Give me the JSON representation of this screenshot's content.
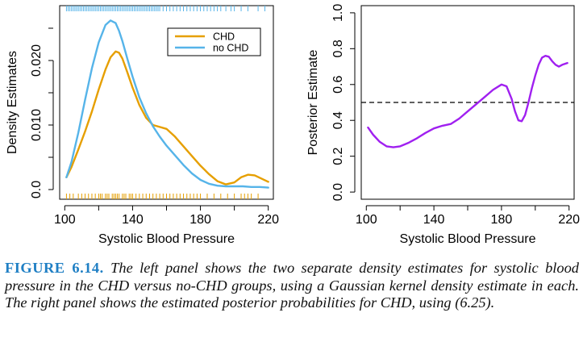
{
  "chart_data": [
    {
      "type": "line",
      "title": "",
      "xlabel": "Systolic Blood Pressure",
      "ylabel": "Density Estimates",
      "xlim": [
        97,
        223
      ],
      "ylim": [
        -0.0015,
        0.0285
      ],
      "xticks": [
        100,
        140,
        180,
        220
      ],
      "yticks": [
        0.0,
        0.01,
        0.02
      ],
      "ytick_labels": [
        "0.0",
        "0.010",
        "0.020"
      ],
      "legend": {
        "placement": "top-right",
        "entries": [
          "CHD",
          "no CHD"
        ]
      },
      "grid": false,
      "series": [
        {
          "name": "CHD",
          "color": "#e69f00",
          "x": [
            101,
            104,
            108,
            112,
            116,
            120,
            124,
            127,
            130,
            132,
            134,
            137,
            140,
            144,
            148,
            152,
            156,
            160,
            165,
            170,
            175,
            180,
            185,
            190,
            195,
            200,
            204,
            208,
            212,
            216,
            220
          ],
          "y": [
            0.0019,
            0.0035,
            0.0062,
            0.009,
            0.0121,
            0.0155,
            0.0186,
            0.0205,
            0.0214,
            0.0212,
            0.0203,
            0.0181,
            0.0158,
            0.0131,
            0.0111,
            0.01,
            0.0097,
            0.0094,
            0.0082,
            0.0067,
            0.0052,
            0.0037,
            0.0024,
            0.0013,
            0.0008,
            0.0011,
            0.0019,
            0.0023,
            0.0022,
            0.0017,
            0.0012
          ]
        },
        {
          "name": "no CHD",
          "color": "#56b4e9",
          "x": [
            101,
            104,
            108,
            112,
            116,
            120,
            124,
            127,
            130,
            132,
            134,
            137,
            140,
            144,
            148,
            152,
            156,
            160,
            165,
            170,
            175,
            180,
            185,
            190,
            195,
            200,
            205,
            210,
            215,
            220
          ],
          "y": [
            0.0019,
            0.0043,
            0.0088,
            0.0139,
            0.0188,
            0.0228,
            0.0255,
            0.0262,
            0.0258,
            0.0246,
            0.023,
            0.0202,
            0.0175,
            0.0143,
            0.0118,
            0.0098,
            0.0082,
            0.0068,
            0.0053,
            0.0038,
            0.0025,
            0.0015,
            0.0009,
            0.0006,
            0.0005,
            0.0005,
            0.0005,
            0.0004,
            0.0004,
            0.0003
          ]
        }
      ],
      "rug_top": {
        "color": "#56b4e9",
        "x": [
          101,
          102,
          103,
          104,
          105,
          106,
          107,
          108,
          109,
          110,
          111,
          112,
          113,
          114,
          115,
          116,
          117,
          118,
          119,
          120,
          121,
          122,
          123,
          124,
          125,
          126,
          127,
          128,
          129,
          130,
          131,
          132,
          133,
          134,
          135,
          136,
          137,
          138,
          139,
          140,
          141,
          142,
          143,
          144,
          145,
          146,
          147,
          148,
          149,
          150,
          151,
          152,
          153,
          154,
          155,
          156,
          158,
          160,
          162,
          164,
          166,
          168,
          170,
          172,
          174,
          176,
          178,
          180,
          182,
          184,
          186,
          188,
          190,
          192,
          195,
          198,
          200,
          204,
          208,
          214,
          218
        ]
      },
      "rug_bottom": {
        "color": "#e69f00",
        "x": [
          101,
          103,
          105,
          108,
          110,
          112,
          114,
          116,
          118,
          120,
          121,
          122,
          124,
          125,
          126,
          128,
          129,
          130,
          131,
          132,
          134,
          135,
          136,
          138,
          139,
          140,
          142,
          144,
          146,
          148,
          150,
          152,
          154,
          156,
          158,
          160,
          162,
          164,
          166,
          168,
          170,
          172,
          174,
          176,
          178,
          180,
          184,
          188,
          192,
          196,
          200,
          204,
          206,
          208,
          210,
          214
        ]
      }
    },
    {
      "type": "line",
      "title": "",
      "xlabel": "Systolic Blood Pressure",
      "ylabel": "Posterior Estimate",
      "xlim": [
        97,
        223
      ],
      "ylim": [
        -0.04,
        1.04
      ],
      "xticks": [
        100,
        140,
        180,
        220
      ],
      "yticks": [
        0.0,
        0.2,
        0.4,
        0.6,
        0.8,
        1.0
      ],
      "ytick_labels": [
        "0.0",
        "0.2",
        "0.4",
        "0.6",
        "0.8",
        "1.0"
      ],
      "grid": false,
      "reference_line": {
        "y": 0.5,
        "style": "dashed",
        "color": "#000000"
      },
      "series": [
        {
          "color": "#a020f0",
          "x": [
            101,
            104,
            108,
            112,
            116,
            120,
            125,
            130,
            135,
            140,
            145,
            150,
            155,
            160,
            165,
            170,
            175,
            180,
            183,
            186,
            188,
            190,
            192,
            194,
            196,
            198,
            200,
            202,
            204,
            206,
            208,
            210,
            212,
            214,
            216,
            219
          ],
          "y": [
            0.36,
            0.32,
            0.28,
            0.255,
            0.25,
            0.255,
            0.275,
            0.3,
            0.33,
            0.355,
            0.37,
            0.38,
            0.41,
            0.45,
            0.49,
            0.53,
            0.57,
            0.6,
            0.59,
            0.52,
            0.45,
            0.4,
            0.395,
            0.43,
            0.5,
            0.58,
            0.65,
            0.71,
            0.75,
            0.76,
            0.755,
            0.73,
            0.71,
            0.7,
            0.71,
            0.72
          ]
        }
      ]
    }
  ],
  "caption": {
    "label": "FIGURE 6.14.",
    "text": "The left panel shows the two separate density estimates for systolic blood pressure in the CHD versus no-CHD groups, using a Gaussian kernel density estimate in each. The right panel shows the estimated posterior probabilities for CHD, using (6.25)."
  }
}
